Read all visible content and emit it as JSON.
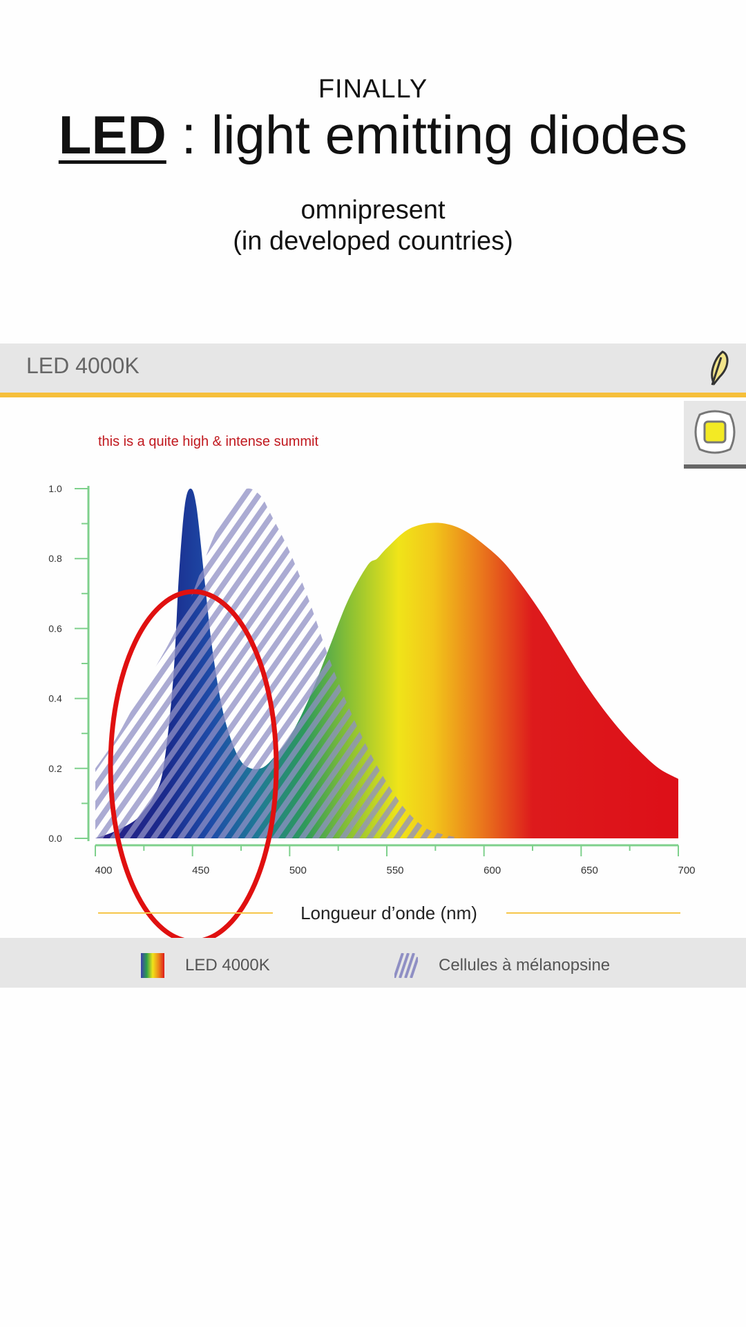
{
  "kicker": "FINALLY",
  "title": {
    "strong": "LED",
    "rest": " : light emitting diodes"
  },
  "subtitle": {
    "line1": "omnipresent",
    "line2": "(in developed countries)"
  },
  "chart_header": {
    "label": "LED 4000K"
  },
  "icons": {
    "header": "feather-icon",
    "chip": "led-chip-icon"
  },
  "chart_data": {
    "type": "area",
    "title": "LED 4000K",
    "xlabel": "Longueur d’onde (nm)",
    "ylabel": "",
    "xlim": [
      400,
      700
    ],
    "ylim": [
      0,
      1
    ],
    "xticks": [
      "400",
      "450",
      "500",
      "550",
      "600",
      "650",
      "700"
    ],
    "yticks": [
      "0.0",
      "0.2",
      "0.4",
      "0.6",
      "0.8",
      "1.0"
    ],
    "annotation": "this is a quite high & intense summit",
    "legend_position": "bottom",
    "series": [
      {
        "name": "LED 4000K",
        "style": "spectrum-gradient",
        "points": [
          [
            400,
            0
          ],
          [
            410,
            0.02
          ],
          [
            420,
            0.05
          ],
          [
            425,
            0.08
          ],
          [
            430,
            0.12
          ],
          [
            435,
            0.2
          ],
          [
            440,
            0.45
          ],
          [
            443,
            0.75
          ],
          [
            446,
            0.95
          ],
          [
            449,
            1.0
          ],
          [
            452,
            0.95
          ],
          [
            456,
            0.75
          ],
          [
            460,
            0.55
          ],
          [
            465,
            0.38
          ],
          [
            470,
            0.28
          ],
          [
            475,
            0.22
          ],
          [
            480,
            0.2
          ],
          [
            485,
            0.2
          ],
          [
            490,
            0.22
          ],
          [
            500,
            0.29
          ],
          [
            510,
            0.4
          ],
          [
            520,
            0.54
          ],
          [
            530,
            0.68
          ],
          [
            540,
            0.78
          ],
          [
            545,
            0.8
          ],
          [
            550,
            0.83
          ],
          [
            560,
            0.88
          ],
          [
            570,
            0.9
          ],
          [
            580,
            0.9
          ],
          [
            590,
            0.88
          ],
          [
            600,
            0.84
          ],
          [
            610,
            0.79
          ],
          [
            620,
            0.72
          ],
          [
            630,
            0.64
          ],
          [
            640,
            0.55
          ],
          [
            650,
            0.46
          ],
          [
            660,
            0.38
          ],
          [
            670,
            0.31
          ],
          [
            680,
            0.25
          ],
          [
            690,
            0.2
          ],
          [
            700,
            0.17
          ]
        ]
      },
      {
        "name": "Cellules à mélanopsine",
        "style": "hatched",
        "points": [
          [
            400,
            0.2
          ],
          [
            410,
            0.28
          ],
          [
            420,
            0.38
          ],
          [
            430,
            0.48
          ],
          [
            440,
            0.58
          ],
          [
            450,
            0.7
          ],
          [
            460,
            0.85
          ],
          [
            470,
            0.96
          ],
          [
            478,
            1.0
          ],
          [
            485,
            0.98
          ],
          [
            490,
            0.93
          ],
          [
            500,
            0.82
          ],
          [
            510,
            0.68
          ],
          [
            520,
            0.52
          ],
          [
            530,
            0.38
          ],
          [
            540,
            0.26
          ],
          [
            550,
            0.16
          ],
          [
            560,
            0.08
          ],
          [
            570,
            0.03
          ],
          [
            580,
            0.01
          ],
          [
            590,
            0
          ]
        ]
      }
    ],
    "colors": {
      "axis": "#7ed08c",
      "ring": "#e01010",
      "annotation": "#c0181e",
      "hatch": "#8f8fc4",
      "axis_underline": "#f6c64a"
    }
  }
}
